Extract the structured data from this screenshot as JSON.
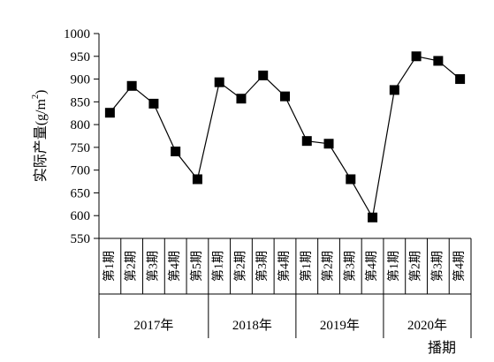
{
  "chart_data": {
    "type": "line",
    "title": "",
    "xlabel": "播期",
    "ylabel_main": "实际产量(g/m",
    "ylabel_sup": "2",
    "ylabel_close": ")",
    "ylim": [
      550,
      1000
    ],
    "yticks": [
      550,
      600,
      650,
      700,
      750,
      800,
      850,
      900,
      950,
      1000
    ],
    "grid": false,
    "groups": [
      {
        "year": "2017年",
        "categories": [
          "第1期",
          "第2期",
          "第3期",
          "第4期",
          "第5期"
        ],
        "values": [
          826,
          885,
          846,
          741,
          680
        ]
      },
      {
        "year": "2018年",
        "categories": [
          "第1期",
          "第2期",
          "第3期",
          "第4期"
        ],
        "values": [
          893,
          857,
          908,
          862
        ]
      },
      {
        "year": "2019年",
        "categories": [
          "第1期",
          "第2期",
          "第3期",
          "第4期"
        ],
        "values": [
          764,
          758,
          680,
          596
        ]
      },
      {
        "year": "2020年",
        "categories": [
          "第1期",
          "第2期",
          "第3期",
          "第4期"
        ],
        "values": [
          876,
          950,
          940,
          900
        ]
      }
    ],
    "series_color": "#000000"
  }
}
